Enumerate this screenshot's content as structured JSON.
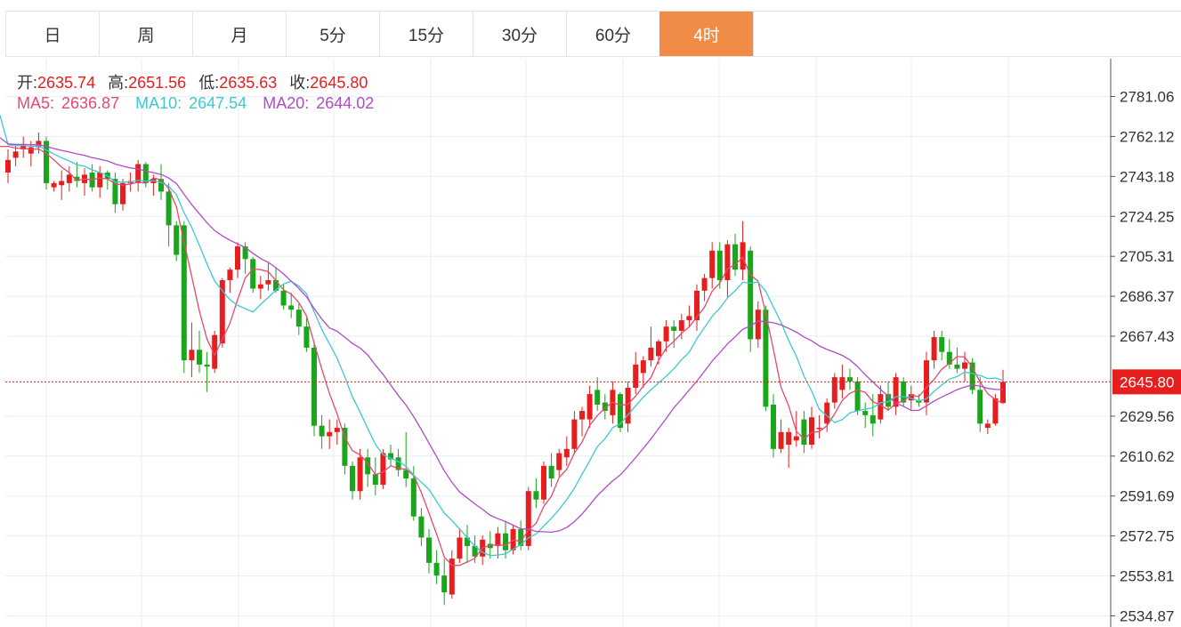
{
  "tabs": [
    {
      "label": "日",
      "active": false
    },
    {
      "label": "周",
      "active": false
    },
    {
      "label": "月",
      "active": false
    },
    {
      "label": "5分",
      "active": false
    },
    {
      "label": "15分",
      "active": false
    },
    {
      "label": "30分",
      "active": false
    },
    {
      "label": "60分",
      "active": false
    },
    {
      "label": "4时",
      "active": true
    }
  ],
  "ohlc": {
    "open_label": "开:",
    "open": "2635.74",
    "high_label": "高:",
    "high": "2651.56",
    "low_label": "低:",
    "low": "2635.63",
    "close_label": "收:",
    "close": "2645.80"
  },
  "ma": {
    "ma5_label": "MA5:",
    "ma5": "2636.87",
    "ma10_label": "MA10:",
    "ma10": "2647.54",
    "ma20_label": "MA20:",
    "ma20": "2644.02"
  },
  "colors": {
    "up": "#e61e1e",
    "down": "#1aa51a",
    "ma5": "#e8486e",
    "ma10": "#3ec8d2",
    "ma20": "#b04cc4",
    "active_tab": "#f08c45",
    "price_tag": "#e61e1e"
  },
  "chart_data": {
    "type": "candlestick",
    "y_ticks": [
      "2781.06",
      "2762.12",
      "2743.18",
      "2724.25",
      "2705.31",
      "2686.37",
      "2667.43",
      "2645.80",
      "2629.56",
      "2610.62",
      "2591.69",
      "2572.75",
      "2553.81",
      "2534.87"
    ],
    "ylim": [
      2532,
      2792
    ],
    "current_price": 2645.8,
    "current_price_label": "2645.80",
    "candles": [
      [
        2745,
        2756,
        2740,
        2751
      ],
      [
        2752,
        2758,
        2748,
        2755
      ],
      [
        2756,
        2762,
        2752,
        2758
      ],
      [
        2754,
        2760,
        2748,
        2757
      ],
      [
        2757,
        2764,
        2754,
        2760
      ],
      [
        2760,
        2762,
        2737,
        2740
      ],
      [
        2738,
        2741,
        2736,
        2740
      ],
      [
        2739,
        2746,
        2732,
        2741
      ],
      [
        2740,
        2748,
        2736,
        2744
      ],
      [
        2743,
        2750,
        2738,
        2741
      ],
      [
        2740,
        2747,
        2734,
        2744
      ],
      [
        2745,
        2749,
        2736,
        2738
      ],
      [
        2738,
        2748,
        2733,
        2745
      ],
      [
        2745,
        2746,
        2737,
        2742
      ],
      [
        2742,
        2745,
        2726,
        2730
      ],
      [
        2730,
        2742,
        2727,
        2740
      ],
      [
        2740,
        2745,
        2736,
        2741
      ],
      [
        2740,
        2751,
        2736,
        2749
      ],
      [
        2749,
        2750,
        2738,
        2740
      ],
      [
        2740,
        2744,
        2734,
        2742
      ],
      [
        2742,
        2749,
        2732,
        2736
      ],
      [
        2736,
        2740,
        2710,
        2720
      ],
      [
        2720,
        2722,
        2703,
        2706
      ],
      [
        2720,
        2722,
        2650,
        2656
      ],
      [
        2656,
        2674,
        2648,
        2661
      ],
      [
        2661,
        2670,
        2650,
        2654
      ],
      [
        2654,
        2660,
        2641,
        2653
      ],
      [
        2652,
        2670,
        2650,
        2668
      ],
      [
        2664,
        2695,
        2662,
        2694
      ],
      [
        2694,
        2700,
        2688,
        2699
      ],
      [
        2699,
        2712,
        2695,
        2710
      ],
      [
        2710,
        2712,
        2697,
        2704
      ],
      [
        2704,
        2705,
        2688,
        2690
      ],
      [
        2690,
        2696,
        2685,
        2692
      ],
      [
        2692,
        2702,
        2689,
        2694
      ],
      [
        2694,
        2700,
        2688,
        2689
      ],
      [
        2689,
        2692,
        2680,
        2682
      ],
      [
        2682,
        2688,
        2676,
        2680
      ],
      [
        2680,
        2683,
        2668,
        2672
      ],
      [
        2672,
        2676,
        2660,
        2662
      ],
      [
        2662,
        2664,
        2620,
        2625
      ],
      [
        2625,
        2630,
        2614,
        2620
      ],
      [
        2620,
        2628,
        2614,
        2622
      ],
      [
        2622,
        2628,
        2616,
        2624
      ],
      [
        2624,
        2626,
        2602,
        2606
      ],
      [
        2606,
        2608,
        2590,
        2594
      ],
      [
        2594,
        2614,
        2590,
        2610
      ],
      [
        2610,
        2614,
        2596,
        2602
      ],
      [
        2602,
        2610,
        2592,
        2597
      ],
      [
        2597,
        2614,
        2595,
        2612
      ],
      [
        2612,
        2616,
        2606,
        2609
      ],
      [
        2610,
        2614,
        2601,
        2604
      ],
      [
        2604,
        2622,
        2596,
        2600
      ],
      [
        2600,
        2606,
        2580,
        2582
      ],
      [
        2582,
        2586,
        2568,
        2572
      ],
      [
        2572,
        2576,
        2555,
        2560
      ],
      [
        2560,
        2566,
        2550,
        2554
      ],
      [
        2554,
        2562,
        2540,
        2546
      ],
      [
        2545,
        2566,
        2543,
        2562
      ],
      [
        2562,
        2576,
        2560,
        2572
      ],
      [
        2572,
        2578,
        2560,
        2568
      ],
      [
        2568,
        2573,
        2560,
        2563
      ],
      [
        2563,
        2573,
        2559,
        2571
      ],
      [
        2569,
        2575,
        2562,
        2567
      ],
      [
        2568,
        2577,
        2562,
        2574
      ],
      [
        2574,
        2580,
        2562,
        2566
      ],
      [
        2566,
        2578,
        2564,
        2576
      ],
      [
        2576,
        2580,
        2566,
        2568
      ],
      [
        2568,
        2596,
        2566,
        2594
      ],
      [
        2594,
        2600,
        2586,
        2590
      ],
      [
        2590,
        2608,
        2588,
        2606
      ],
      [
        2606,
        2612,
        2596,
        2600
      ],
      [
        2604,
        2614,
        2601,
        2612
      ],
      [
        2610,
        2620,
        2606,
        2614
      ],
      [
        2614,
        2632,
        2612,
        2628
      ],
      [
        2628,
        2634,
        2620,
        2632
      ],
      [
        2628,
        2644,
        2624,
        2640
      ],
      [
        2642,
        2648,
        2632,
        2635
      ],
      [
        2636,
        2640,
        2628,
        2632
      ],
      [
        2630,
        2646,
        2626,
        2642
      ],
      [
        2640,
        2641,
        2622,
        2624
      ],
      [
        2626,
        2646,
        2622,
        2643
      ],
      [
        2643,
        2660,
        2640,
        2654
      ],
      [
        2650,
        2658,
        2643,
        2656
      ],
      [
        2656,
        2672,
        2653,
        2662
      ],
      [
        2658,
        2666,
        2654,
        2665
      ],
      [
        2665,
        2675,
        2660,
        2672
      ],
      [
        2672,
        2675,
        2662,
        2670
      ],
      [
        2670,
        2678,
        2666,
        2675
      ],
      [
        2675,
        2682,
        2672,
        2677
      ],
      [
        2675,
        2692,
        2670,
        2689
      ],
      [
        2689,
        2697,
        2684,
        2695
      ],
      [
        2695,
        2712,
        2690,
        2708
      ],
      [
        2708,
        2712,
        2690,
        2694
      ],
      [
        2694,
        2713,
        2686,
        2711
      ],
      [
        2711,
        2716,
        2696,
        2699
      ],
      [
        2699,
        2722,
        2694,
        2712
      ],
      [
        2708,
        2710,
        2660,
        2666
      ],
      [
        2666,
        2684,
        2662,
        2680
      ],
      [
        2680,
        2682,
        2632,
        2634
      ],
      [
        2635,
        2640,
        2610,
        2614
      ],
      [
        2614,
        2628,
        2612,
        2622
      ],
      [
        2616,
        2624,
        2605,
        2622
      ],
      [
        2618,
        2632,
        2615,
        2620
      ],
      [
        2628,
        2632,
        2612,
        2616
      ],
      [
        2616,
        2634,
        2614,
        2629
      ],
      [
        2624,
        2630,
        2619,
        2624
      ],
      [
        2626,
        2638,
        2622,
        2636
      ],
      [
        2636,
        2650,
        2633,
        2648
      ],
      [
        2642,
        2654,
        2638,
        2648
      ],
      [
        2648,
        2652,
        2642,
        2646
      ],
      [
        2646,
        2648,
        2630,
        2632
      ],
      [
        2632,
        2636,
        2624,
        2630
      ],
      [
        2630,
        2640,
        2620,
        2626
      ],
      [
        2628,
        2644,
        2626,
        2640
      ],
      [
        2640,
        2646,
        2632,
        2634
      ],
      [
        2634,
        2650,
        2630,
        2648
      ],
      [
        2646,
        2648,
        2634,
        2636
      ],
      [
        2637,
        2644,
        2632,
        2640
      ],
      [
        2637,
        2640,
        2634,
        2636
      ],
      [
        2636,
        2660,
        2630,
        2656
      ],
      [
        2656,
        2670,
        2652,
        2667
      ],
      [
        2667,
        2670,
        2656,
        2660
      ],
      [
        2660,
        2666,
        2652,
        2654
      ],
      [
        2654,
        2662,
        2650,
        2652
      ],
      [
        2652,
        2660,
        2646,
        2655
      ],
      [
        2655,
        2657,
        2640,
        2642
      ],
      [
        2642,
        2648,
        2622,
        2626
      ],
      [
        2624,
        2628,
        2621,
        2626
      ],
      [
        2626,
        2640,
        2625,
        2638
      ],
      [
        2635.74,
        2651.56,
        2635.63,
        2645.8
      ]
    ]
  }
}
